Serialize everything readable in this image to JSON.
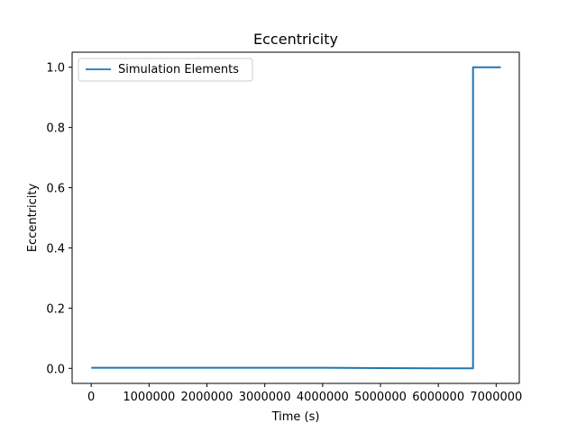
{
  "chart_data": {
    "type": "line",
    "title": "Eccentricity",
    "xlabel": "Time (s)",
    "ylabel": "Eccentricity",
    "xlim": [
      -330000,
      7400000
    ],
    "ylim": [
      -0.05,
      1.05
    ],
    "xticks": [
      0,
      1000000,
      2000000,
      3000000,
      4000000,
      5000000,
      6000000,
      7000000
    ],
    "yticks": [
      0.0,
      0.2,
      0.4,
      0.6,
      0.8,
      1.0
    ],
    "xtick_labels": [
      "0",
      "1000000",
      "2000000",
      "3000000",
      "4000000",
      "5000000",
      "6000000",
      "7000000"
    ],
    "ytick_labels": [
      "0.0",
      "0.2",
      "0.4",
      "0.6",
      "0.8",
      "1.0"
    ],
    "grid": false,
    "legend_position": "upper-left",
    "series": [
      {
        "name": "Simulation Elements",
        "color": "#1f77b4",
        "x": [
          0,
          1000000,
          2000000,
          3000000,
          4000000,
          5000000,
          6000000,
          6600000,
          6600000,
          7080000
        ],
        "y": [
          0.002,
          0.002,
          0.002,
          0.002,
          0.002,
          0.001,
          0.0,
          0.0,
          1.0,
          1.0
        ]
      }
    ]
  }
}
